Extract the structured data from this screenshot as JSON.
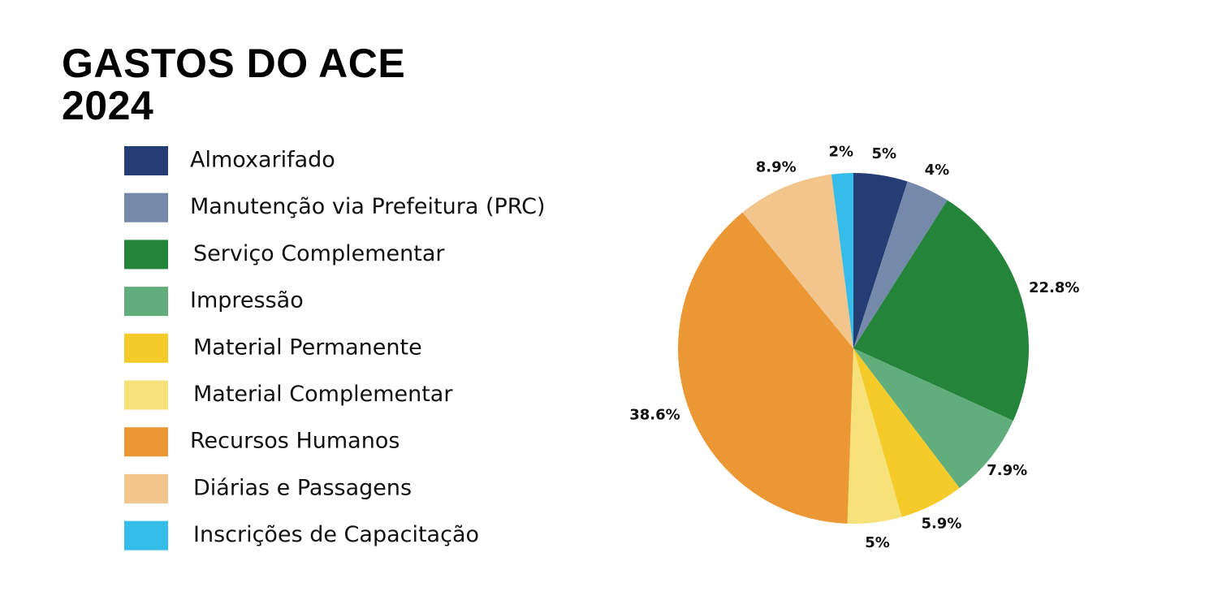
{
  "chart_data": {
    "type": "pie",
    "title": "GASTOS DO ACE\n2024",
    "categories": [
      "Almoxarifado",
      "Manutenção via Prefeitura (PRC)",
      "Serviço Complementar",
      "Impressão",
      "Material Permanente",
      "Material Complementar",
      "Recursos Humanos",
      "Diárias e Passagens",
      "Inscrições de Capacitação"
    ],
    "values": [
      5,
      4,
      22.8,
      7.9,
      5.9,
      5,
      38.6,
      8.9,
      2
    ],
    "value_labels": [
      "5%",
      "4%",
      "22.8%",
      "7.9%",
      "5.9%",
      "5%",
      "38.6%",
      "8.9%",
      "2%"
    ],
    "colors": [
      "#243d73",
      "#7589aa",
      "#23843a",
      "#62ad7c",
      "#f5cb2a",
      "#f7e27a",
      "#eb9734",
      "#f2c58c",
      "#36bce9"
    ]
  }
}
